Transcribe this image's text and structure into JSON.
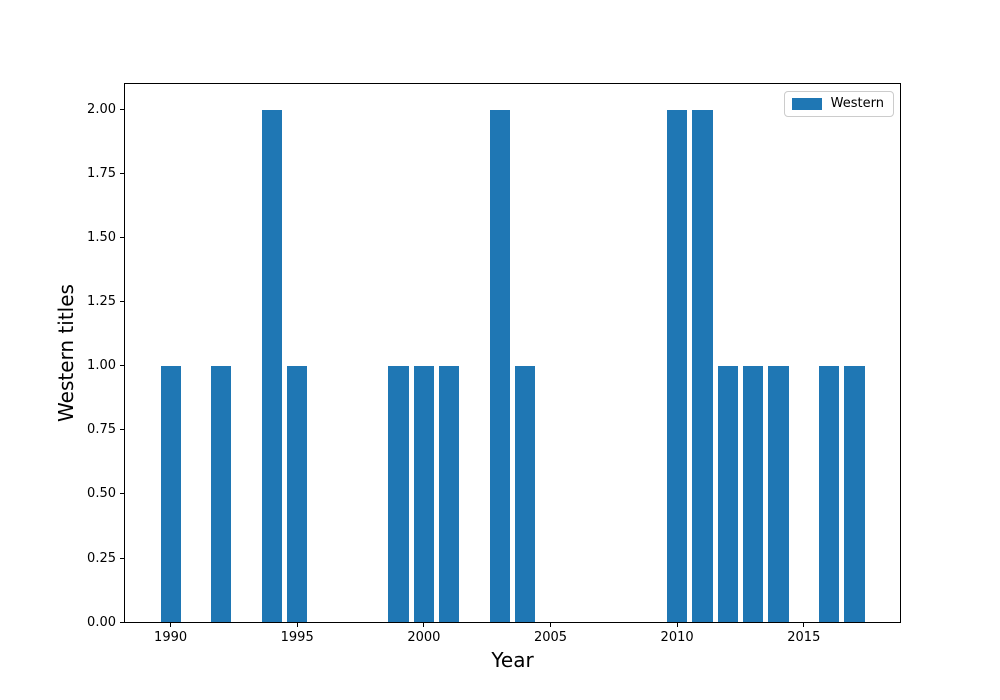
{
  "chart_data": {
    "type": "bar",
    "title": "",
    "xlabel": "Year",
    "ylabel": "Western titles",
    "legend": [
      "Western"
    ],
    "legend_position": "upper right",
    "series_name": "Western",
    "x": [
      1990,
      1992,
      1994,
      1995,
      1999,
      2000,
      2001,
      2003,
      2004,
      2010,
      2011,
      2012,
      2013,
      2014,
      2016,
      2017
    ],
    "values": [
      1,
      1,
      2,
      1,
      1,
      1,
      1,
      2,
      1,
      2,
      2,
      1,
      1,
      1,
      1,
      1
    ],
    "bar_color": "#1f77b4",
    "bar_width_years": 0.8,
    "xlim": [
      1988.2,
      2018.8
    ],
    "ylim": [
      0,
      2.1
    ],
    "grid": false,
    "x_ticks": [
      {
        "value": 1990,
        "label": "1990"
      },
      {
        "value": 1995,
        "label": "1995"
      },
      {
        "value": 2000,
        "label": "2000"
      },
      {
        "value": 2005,
        "label": "2005"
      },
      {
        "value": 2010,
        "label": "2010"
      },
      {
        "value": 2015,
        "label": "2015"
      }
    ],
    "y_ticks": [
      {
        "value": 0.0,
        "label": "0.00"
      },
      {
        "value": 0.25,
        "label": "0.25"
      },
      {
        "value": 0.5,
        "label": "0.50"
      },
      {
        "value": 0.75,
        "label": "0.75"
      },
      {
        "value": 1.0,
        "label": "1.00"
      },
      {
        "value": 1.25,
        "label": "1.25"
      },
      {
        "value": 1.5,
        "label": "1.50"
      },
      {
        "value": 1.75,
        "label": "1.75"
      },
      {
        "value": 2.0,
        "label": "2.00"
      }
    ]
  }
}
